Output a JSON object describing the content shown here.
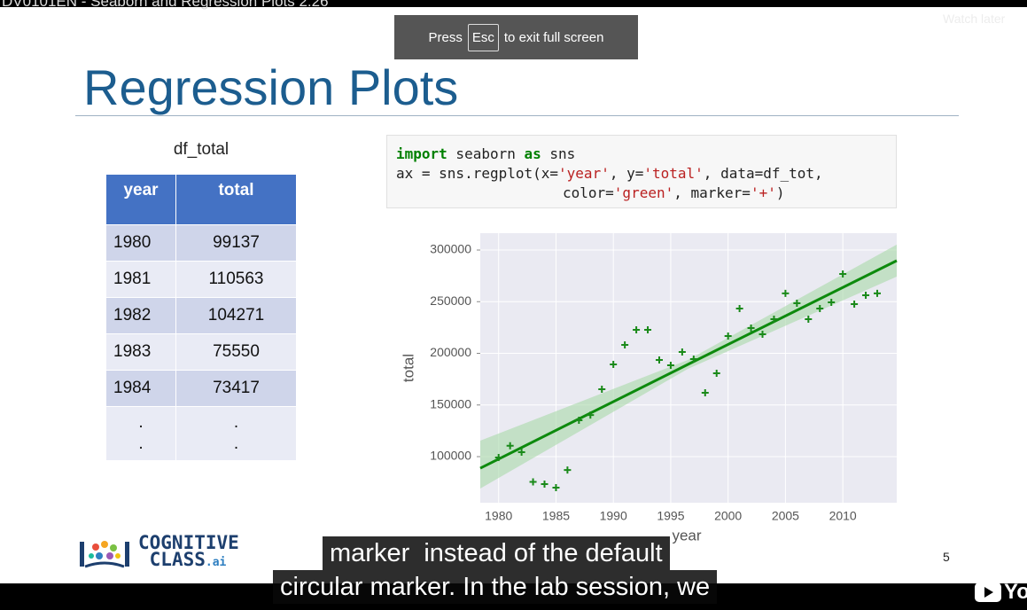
{
  "video": {
    "title": "DV0101EN - Seaborn and Regression Plots 2:26",
    "watch_later": "Watch later",
    "youtube": "Yo"
  },
  "fullscreen_hint": {
    "before": "Press",
    "key": "Esc",
    "after": "to exit full screen"
  },
  "slide": {
    "title": "Regression Plots",
    "page_number": "5",
    "logo": {
      "line1": "COGNITIVE",
      "line2": "CLASS",
      "suffix": ".ai"
    }
  },
  "table": {
    "caption": "df_total",
    "header": [
      "year",
      "total"
    ],
    "rows": [
      [
        "1980",
        "99137"
      ],
      [
        "1981",
        "110563"
      ],
      [
        "1982",
        "104271"
      ],
      [
        "1983",
        "75550"
      ],
      [
        "1984",
        "73417"
      ]
    ],
    "ellipsis": [
      [
        ".",
        "."
      ],
      [
        ".",
        "."
      ]
    ]
  },
  "code": {
    "lines": [
      [
        {
          "text": "import",
          "color": "#008000",
          "bold": true
        },
        {
          "text": " seaborn ",
          "color": "#222222",
          "bold": false
        },
        {
          "text": "as",
          "color": "#008000",
          "bold": true
        },
        {
          "text": " sns",
          "color": "#222222",
          "bold": false
        }
      ],
      [
        {
          "text": "ax = sns.regplot(x=",
          "color": "#222222",
          "bold": false
        },
        {
          "text": "'year'",
          "color": "#ba2121",
          "bold": false
        },
        {
          "text": ", y=",
          "color": "#222222",
          "bold": false
        },
        {
          "text": "'total'",
          "color": "#ba2121",
          "bold": false
        },
        {
          "text": ", data=df_tot,",
          "color": "#222222",
          "bold": false
        }
      ],
      [
        {
          "text": "color=",
          "color": "#222222",
          "bold": false
        },
        {
          "text": "'green'",
          "color": "#ba2121",
          "bold": false
        },
        {
          "text": ", marker=",
          "color": "#222222",
          "bold": false
        },
        {
          "text": "'+'",
          "color": "#ba2121",
          "bold": false
        },
        {
          "text": ")",
          "color": "#222222",
          "bold": false
        }
      ]
    ]
  },
  "chart_data": {
    "type": "scatter",
    "x_label": "year",
    "y_label": "total",
    "x": [
      1980,
      1981,
      1982,
      1983,
      1984,
      1985,
      1986,
      1987,
      1988,
      1989,
      1990,
      1991,
      1992,
      1993,
      1994,
      1995,
      1996,
      1997,
      1998,
      1999,
      2000,
      2001,
      2002,
      2003,
      2004,
      2005,
      2006,
      2007,
      2008,
      2009,
      2010,
      2011,
      2012,
      2013
    ],
    "values": [
      99137,
      110563,
      104271,
      75550,
      73417,
      70000,
      87100,
      135200,
      140300,
      165200,
      189300,
      208200,
      222700,
      222700,
      193600,
      188400,
      201300,
      194400,
      161800,
      180700,
      216700,
      243300,
      224500,
      218500,
      233000,
      258000,
      248500,
      233000,
      243300,
      249400,
      276800,
      247600,
      256200,
      258000
    ],
    "color": "#1a8a1a",
    "regression": {
      "x": [
        1978.4,
        1996.5,
        2014.7
      ],
      "values": [
        88800,
        189300,
        289700
      ],
      "lower": [
        69100,
        185000,
        274200
      ],
      "upper": [
        115500,
        193600,
        305200
      ],
      "color": "#0d8a0d",
      "band_color": "#a8d8a8"
    },
    "xlim": [
      1978.4,
      2014.7
    ],
    "ylim": [
      55400,
      316300
    ],
    "xticks": [
      1980,
      1985,
      1990,
      1995,
      2000,
      2005,
      2010
    ],
    "yticks": [
      100000,
      150000,
      200000,
      250000,
      300000
    ],
    "grid": true,
    "background": "#eaeaf2"
  },
  "captions": [
    "marker  instead of the default",
    "circular marker. In the lab session, we"
  ]
}
